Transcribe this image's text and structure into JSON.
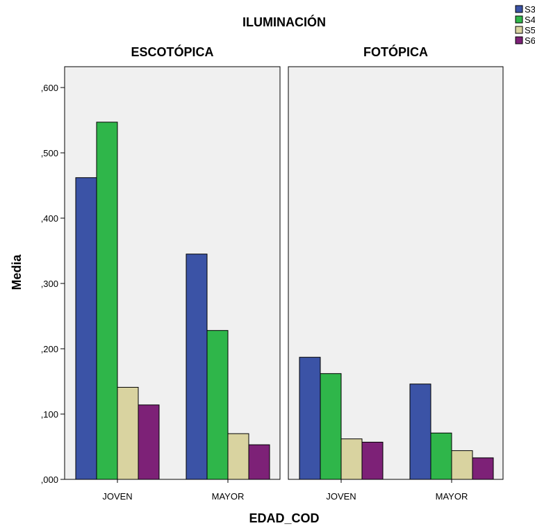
{
  "chart_data": {
    "type": "bar",
    "title": "ILUMINACIÓN",
    "ylabel": "Media",
    "xlabel": "EDAD_COD",
    "ylim": [
      0,
      0.6
    ],
    "yticks": [
      ",000",
      ",100",
      ",200",
      ",300",
      ",400",
      ",500",
      ",600"
    ],
    "ytick_values": [
      0,
      0.1,
      0.2,
      0.3,
      0.4,
      0.5,
      0.6
    ],
    "categories": [
      "JOVEN",
      "MAYOR"
    ],
    "legend_position": "top-right",
    "legend": [
      {
        "name": "S3",
        "color": "#3b53a6"
      },
      {
        "name": "S4",
        "color": "#2fb64a"
      },
      {
        "name": "S5",
        "color": "#d9d3a0"
      },
      {
        "name": "S6",
        "color": "#7d2177"
      }
    ],
    "panels": [
      {
        "name": "ESCOTÓPICA",
        "series": [
          {
            "name": "S3",
            "values": [
              0.462,
              0.345
            ]
          },
          {
            "name": "S4",
            "values": [
              0.547,
              0.228
            ]
          },
          {
            "name": "S5",
            "values": [
              0.141,
              0.07
            ]
          },
          {
            "name": "S6",
            "values": [
              0.114,
              0.053
            ]
          }
        ]
      },
      {
        "name": "FOTÓPICA",
        "series": [
          {
            "name": "S3",
            "values": [
              0.187,
              0.146
            ]
          },
          {
            "name": "S4",
            "values": [
              0.162,
              0.071
            ]
          },
          {
            "name": "S5",
            "values": [
              0.062,
              0.044
            ]
          },
          {
            "name": "S6",
            "values": [
              0.057,
              0.033
            ]
          }
        ]
      }
    ],
    "grid": false,
    "panel_background": "#f0f0f0",
    "bar_border": "#000000"
  }
}
